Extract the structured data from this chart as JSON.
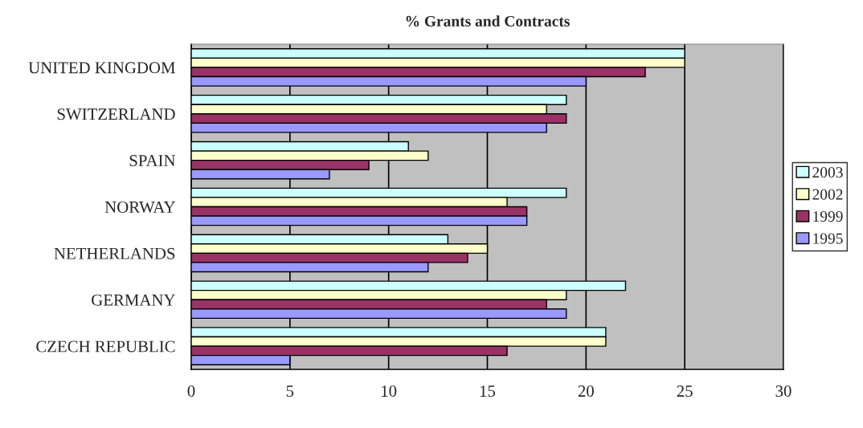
{
  "chart_data": {
    "type": "bar",
    "orientation": "horizontal",
    "title": "% Grants and Contracts",
    "categories": [
      "UNITED KINGDOM",
      "SWITZERLAND",
      "SPAIN",
      "NORWAY",
      "NETHERLANDS",
      "GERMANY",
      "CZECH REPUBLIC"
    ],
    "series": [
      {
        "name": "2003",
        "color": "#ccffff",
        "values": [
          25,
          19,
          11,
          19,
          13,
          22,
          21
        ]
      },
      {
        "name": "2002",
        "color": "#ffffcc",
        "values": [
          25,
          18,
          12,
          16,
          15,
          19,
          21
        ]
      },
      {
        "name": "1999",
        "color": "#993366",
        "values": [
          23,
          19,
          9,
          17,
          14,
          18,
          16
        ]
      },
      {
        "name": "1995",
        "color": "#9999ff",
        "values": [
          20,
          18,
          7,
          17,
          12,
          19,
          5
        ]
      }
    ],
    "xlim": [
      0,
      30
    ],
    "xticks": [
      0,
      5,
      10,
      15,
      20,
      25,
      30
    ],
    "grid": "x",
    "legend": "right"
  }
}
